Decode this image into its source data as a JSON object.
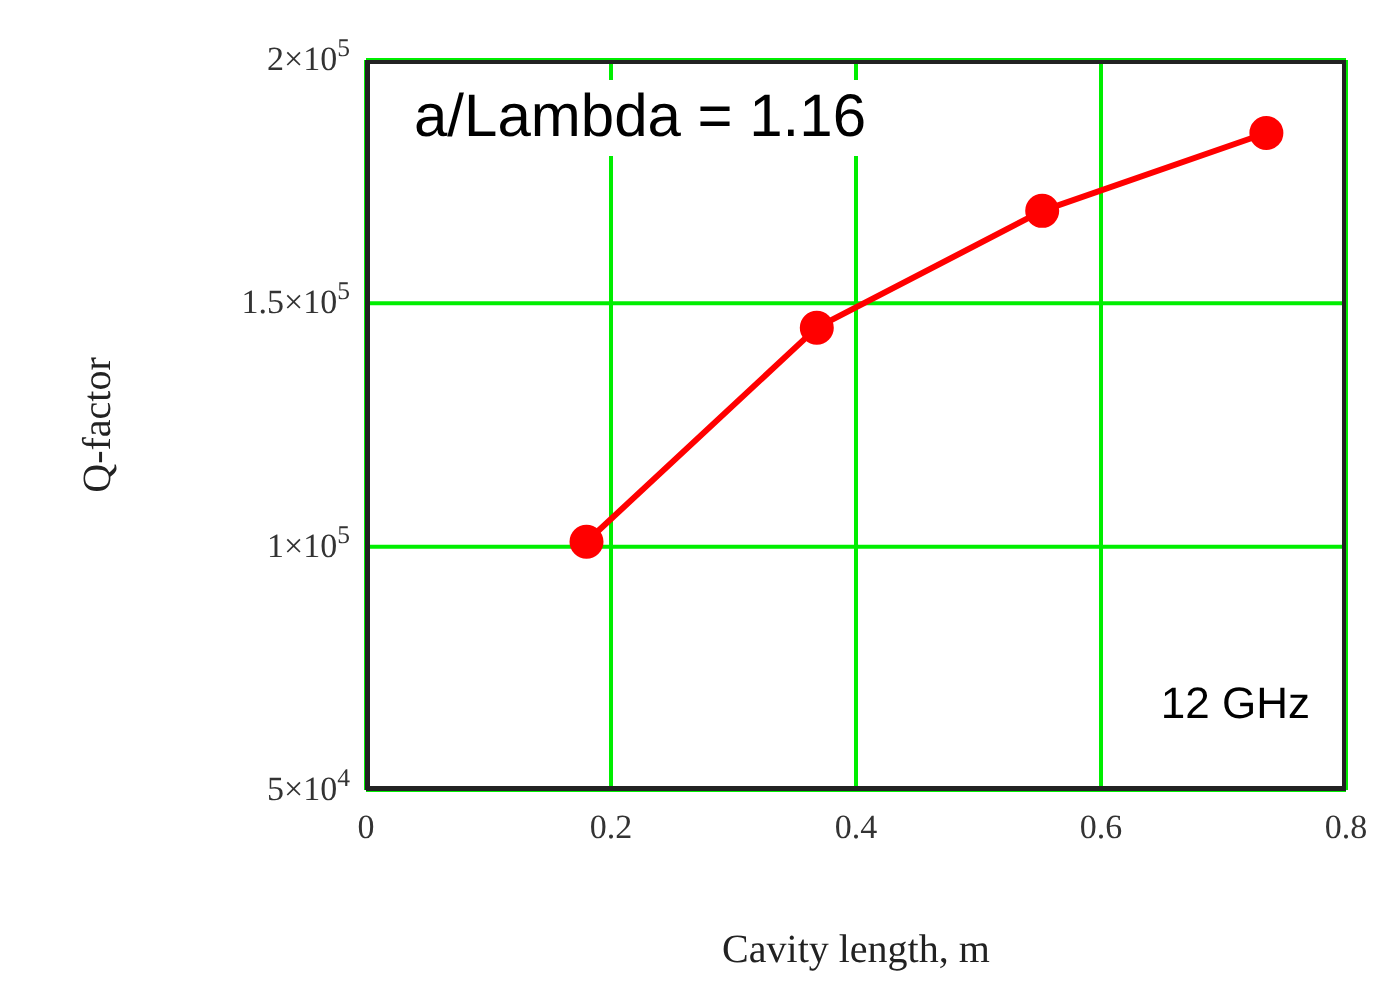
{
  "chart_data": {
    "type": "line",
    "xlabel": "Cavity length, m",
    "ylabel": "Q-factor",
    "x": [
      0.18,
      0.368,
      0.552,
      0.735
    ],
    "series": [
      {
        "color": "#ff0000",
        "values": [
          101000,
          145000,
          169000,
          185000
        ]
      }
    ],
    "xlim": [
      0,
      0.8
    ],
    "xticks": [
      0,
      0.2,
      0.4,
      0.6,
      0.8
    ],
    "ylim": [
      50000,
      200000
    ],
    "yticks": [
      {
        "value": 50000,
        "label": "5×10$^{4}$"
      },
      {
        "value": 100000,
        "label": "1×10$^{5}$"
      },
      {
        "value": 150000,
        "label": "1.5×10$^{5}$"
      },
      {
        "value": 200000,
        "label": "2×10$^{5}$"
      }
    ],
    "grid": true,
    "marker": "circle",
    "line_style": "solid",
    "annotations": [
      "a/Lambda = 1.16",
      "12 GHz"
    ]
  }
}
